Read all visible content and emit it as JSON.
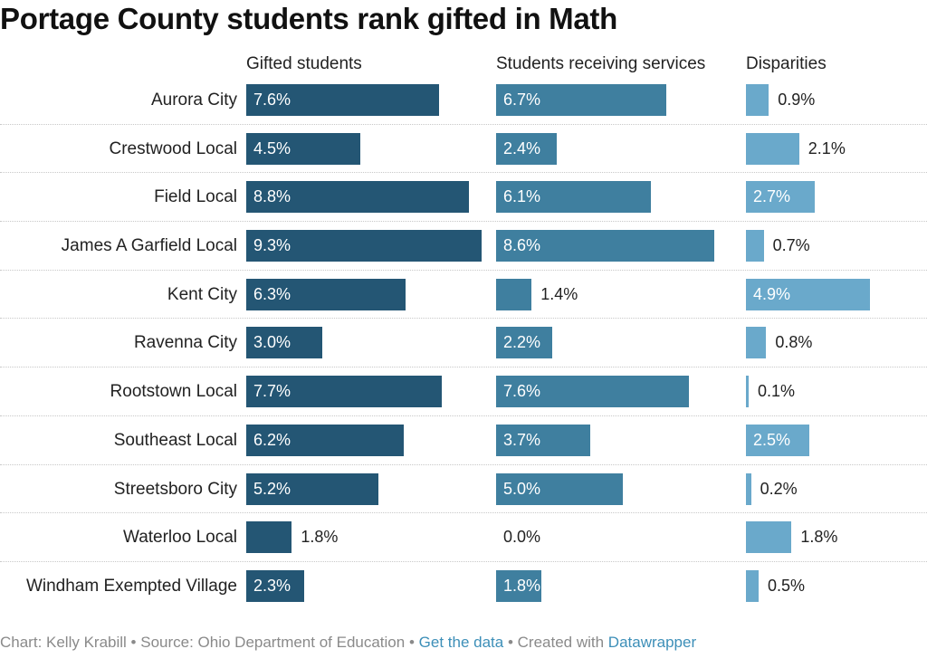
{
  "chart_data": {
    "type": "bar",
    "title": "Portage County students rank gifted in Math",
    "categories": [
      "Aurora City",
      "Crestwood Local",
      "Field Local",
      "James A Garfield Local",
      "Kent City",
      "Ravenna City",
      "Rootstown Local",
      "Southeast Local",
      "Streetsboro City",
      "Waterloo Local",
      "Windham Exempted Village"
    ],
    "series": [
      {
        "name": "Gifted students",
        "color": "#245674",
        "values": [
          7.6,
          4.5,
          8.8,
          9.3,
          6.3,
          3.0,
          7.7,
          6.2,
          5.2,
          1.8,
          2.3
        ],
        "labels": [
          "7.6%",
          "4.5%",
          "8.8%",
          "9.3%",
          "6.3%",
          "3.0%",
          "7.7%",
          "6.2%",
          "5.2%",
          "1.8%",
          "2.3%"
        ]
      },
      {
        "name": "Students receiving services",
        "color": "#3f7f9f",
        "values": [
          6.7,
          2.4,
          6.1,
          8.6,
          1.4,
          2.2,
          7.6,
          3.7,
          5.0,
          0.0,
          1.8
        ],
        "labels": [
          "6.7%",
          "2.4%",
          "6.1%",
          "8.6%",
          "1.4%",
          "2.2%",
          "7.6%",
          "3.7%",
          "5.0%",
          "0.0%",
          "1.8%"
        ]
      },
      {
        "name": "Disparities",
        "color": "#6aa9cb",
        "values": [
          0.9,
          2.1,
          2.7,
          0.7,
          4.9,
          0.8,
          0.1,
          2.5,
          0.2,
          1.8,
          0.5
        ],
        "labels": [
          "0.9%",
          "2.1%",
          "2.7%",
          "0.7%",
          "4.9%",
          "0.8%",
          "0.1%",
          "2.5%",
          "0.2%",
          "1.8%",
          "0.5%"
        ]
      }
    ]
  },
  "footer": {
    "credit": "Chart: Kelly Krabill • Source: Ohio Department of Education •",
    "data_link": "Get the data",
    "created_with": "• Created with",
    "tool_link": "Datawrapper"
  }
}
